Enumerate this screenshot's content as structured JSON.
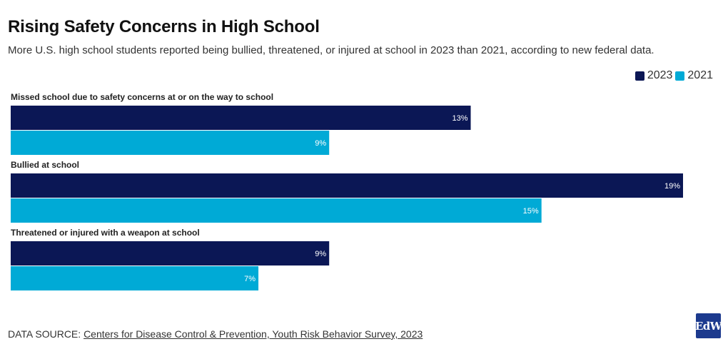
{
  "colors": {
    "series_2023": "#0b1755",
    "series_2021": "#00aad6"
  },
  "logo_text": "EdW",
  "source": {
    "prefix": "DATA SOURCE:",
    "link_text": "Centers for Disease Control & Prevention, Youth Risk Behavior Survey, 2023"
  },
  "chart_data": {
    "type": "bar",
    "orientation": "horizontal",
    "title": "Rising Safety Concerns in High School",
    "subtitle": "More U.S. high school students reported being bullied, threatened, or injured at school in 2023 than 2021, according to new federal data.",
    "categories": [
      "Missed school due to safety concerns at or on the way to school",
      "Bullied at school",
      "Threatened or injured with a weapon at school"
    ],
    "series": [
      {
        "name": "2023",
        "values": [
          13,
          19,
          9
        ]
      },
      {
        "name": "2021",
        "values": [
          9,
          15,
          7
        ]
      }
    ],
    "value_suffix": "%",
    "xlim": [
      0,
      19
    ],
    "legend_position": "top-right",
    "grid": false
  }
}
